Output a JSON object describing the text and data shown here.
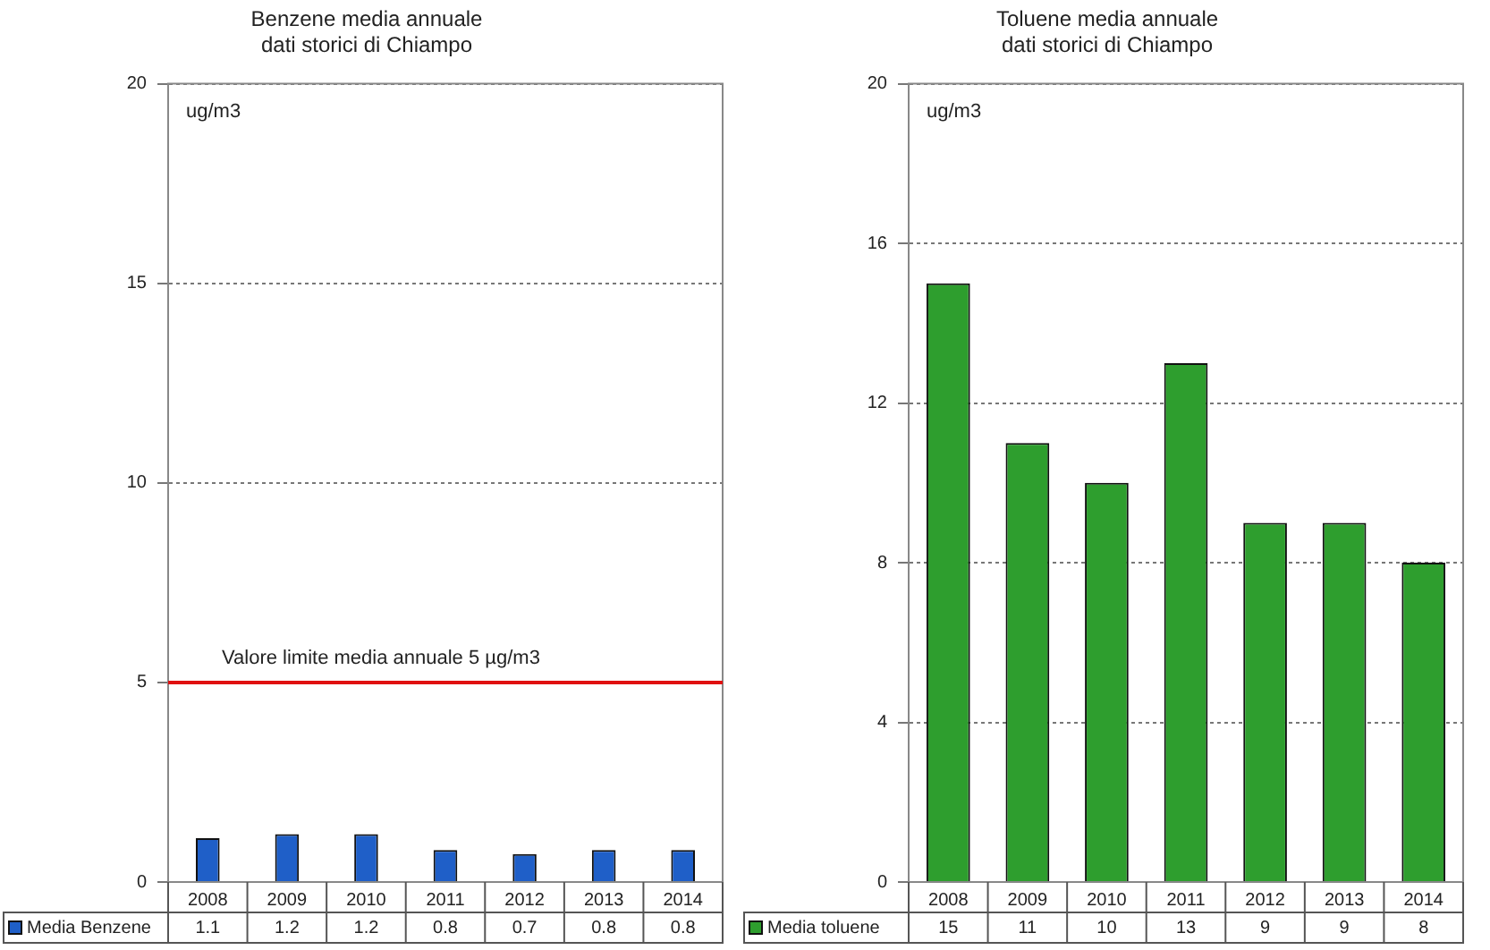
{
  "chart_data": [
    {
      "type": "bar",
      "title": "Benzene media annuale",
      "subtitle": "dati storici di Chiampo",
      "ylabel": "ug/m3",
      "categories": [
        "2008",
        "2009",
        "2010",
        "2011",
        "2012",
        "2013",
        "2014"
      ],
      "series": [
        {
          "name": "Media Benzene",
          "color": "#1f5fc8",
          "values": [
            1.1,
            1.2,
            1.2,
            0.8,
            0.7,
            0.8,
            0.8
          ]
        }
      ],
      "ylim": [
        0,
        20
      ],
      "yticks": [
        0,
        5,
        10,
        15,
        20
      ],
      "grid": "y",
      "legend": "bottom",
      "data_labels": true,
      "ref_lines": [
        {
          "axis": "y",
          "value": 5,
          "label": "Valore limite media annuale 5 µg/m3",
          "color": "#e01010"
        }
      ]
    },
    {
      "type": "bar",
      "title": "Toluene media annuale",
      "subtitle": "dati storici di Chiampo",
      "ylabel": "ug/m3",
      "categories": [
        "2008",
        "2009",
        "2010",
        "2011",
        "2012",
        "2013",
        "2014"
      ],
      "series": [
        {
          "name": "Media toluene",
          "color": "#2e9e2e",
          "values": [
            15,
            11,
            10,
            13,
            9,
            9,
            8
          ]
        }
      ],
      "ylim": [
        0,
        20
      ],
      "yticks": [
        0,
        4,
        8,
        12,
        16,
        20
      ],
      "grid": "y",
      "legend": "bottom",
      "data_labels": true
    }
  ]
}
